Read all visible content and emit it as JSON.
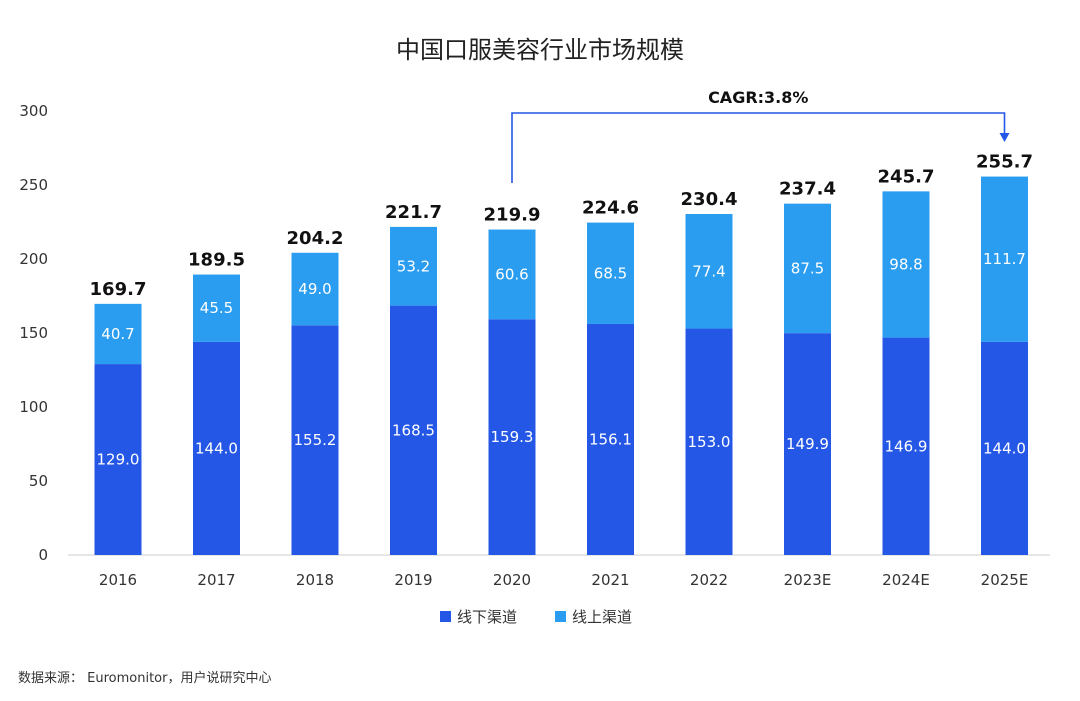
{
  "chart_data": {
    "type": "bar",
    "stacked": true,
    "title": "中国口服美容行业市场规模",
    "categories": [
      "2016",
      "2017",
      "2018",
      "2019",
      "2020",
      "2021",
      "2022",
      "2023E",
      "2024E",
      "2025E"
    ],
    "series": [
      {
        "name": "线下渠道",
        "color": "#2457e6",
        "values": [
          129.0,
          144.0,
          155.2,
          168.5,
          159.3,
          156.1,
          153.0,
          149.9,
          146.9,
          144.0
        ]
      },
      {
        "name": "线上渠道",
        "color": "#2b9df0",
        "values": [
          40.7,
          45.5,
          49.0,
          53.2,
          60.6,
          68.5,
          77.4,
          87.5,
          98.8,
          111.7
        ]
      }
    ],
    "totals": [
      "169.7",
      "189.5",
      "204.2",
      "221.7",
      "219.9",
      "224.6",
      "230.4",
      "237.4",
      "245.7",
      "255.7"
    ],
    "ylim": [
      0,
      300
    ],
    "yticks": [
      0,
      50,
      100,
      150,
      200,
      250,
      300
    ],
    "xlabel": "",
    "ylabel": "",
    "grid": false,
    "legend": "bottom-center",
    "annotation": {
      "text": "CAGR:3.8%",
      "from": "2020",
      "to": "2025E",
      "color": "#2457e6"
    }
  },
  "source": "数据来源：  Euromonitor，用户说研究中心"
}
